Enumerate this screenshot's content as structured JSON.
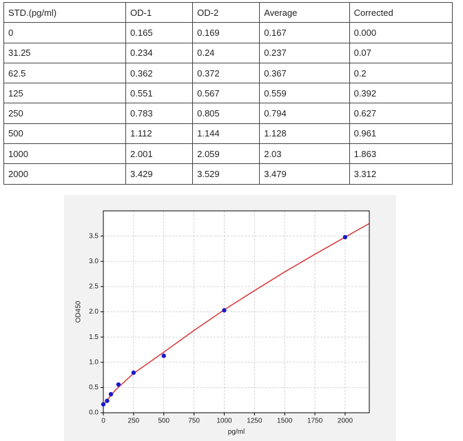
{
  "table": {
    "header": [
      "STD.(pg/ml)",
      "OD-1",
      "OD-2",
      "Average",
      "Corrected"
    ],
    "rows": [
      [
        "0",
        "0.165",
        "0.169",
        "0.167",
        "0.000"
      ],
      [
        "31.25",
        "0.234",
        "0.24",
        "0.237",
        "0.07"
      ],
      [
        "62.5",
        "0.362",
        "0.372",
        "0.367",
        "0.2"
      ],
      [
        "125",
        "0.551",
        "0.567",
        "0.559",
        "0.392"
      ],
      [
        "250",
        "0.783",
        "0.805",
        "0.794",
        "0.627"
      ],
      [
        "500",
        "1.112",
        "1.144",
        "1.128",
        "0.961"
      ],
      [
        "1000",
        "2.001",
        "2.059",
        "2.03",
        "1.863"
      ],
      [
        "2000",
        "3.429",
        "3.529",
        "3.479",
        "3.312"
      ]
    ]
  },
  "chart_data": {
    "type": "scatter",
    "x_label": "pg/ml",
    "y_label": "OD450",
    "x": [
      0,
      31.25,
      62.5,
      125,
      250,
      500,
      1000,
      2000
    ],
    "values": [
      0.167,
      0.237,
      0.367,
      0.559,
      0.794,
      1.128,
      2.03,
      3.479
    ],
    "color": "#1a1acc",
    "fit": {
      "color": "#d62728",
      "x": [
        0,
        100,
        250,
        500,
        750,
        1000,
        1250,
        1500,
        1750,
        2000,
        2200
      ],
      "values": [
        0.16,
        0.45,
        0.78,
        1.2,
        1.63,
        2.04,
        2.42,
        2.79,
        3.14,
        3.48,
        3.75
      ]
    },
    "xlim": [
      0,
      2200
    ],
    "ylim": [
      0,
      4.0
    ],
    "xticks": [
      0,
      250,
      500,
      750,
      1000,
      1250,
      1500,
      1750,
      2000
    ],
    "yticks": [
      {
        "value": 0,
        "label": "0.0"
      },
      {
        "value": 0.5,
        "label": "0.5"
      },
      {
        "value": 1,
        "label": "1.0"
      },
      {
        "value": 1.5,
        "label": "1.5"
      },
      {
        "value": 2,
        "label": "2.0"
      },
      {
        "value": 2.5,
        "label": "2.5"
      },
      {
        "value": 3,
        "label": "3.0"
      },
      {
        "value": 3.5,
        "label": "3.5"
      }
    ],
    "grid": true
  }
}
